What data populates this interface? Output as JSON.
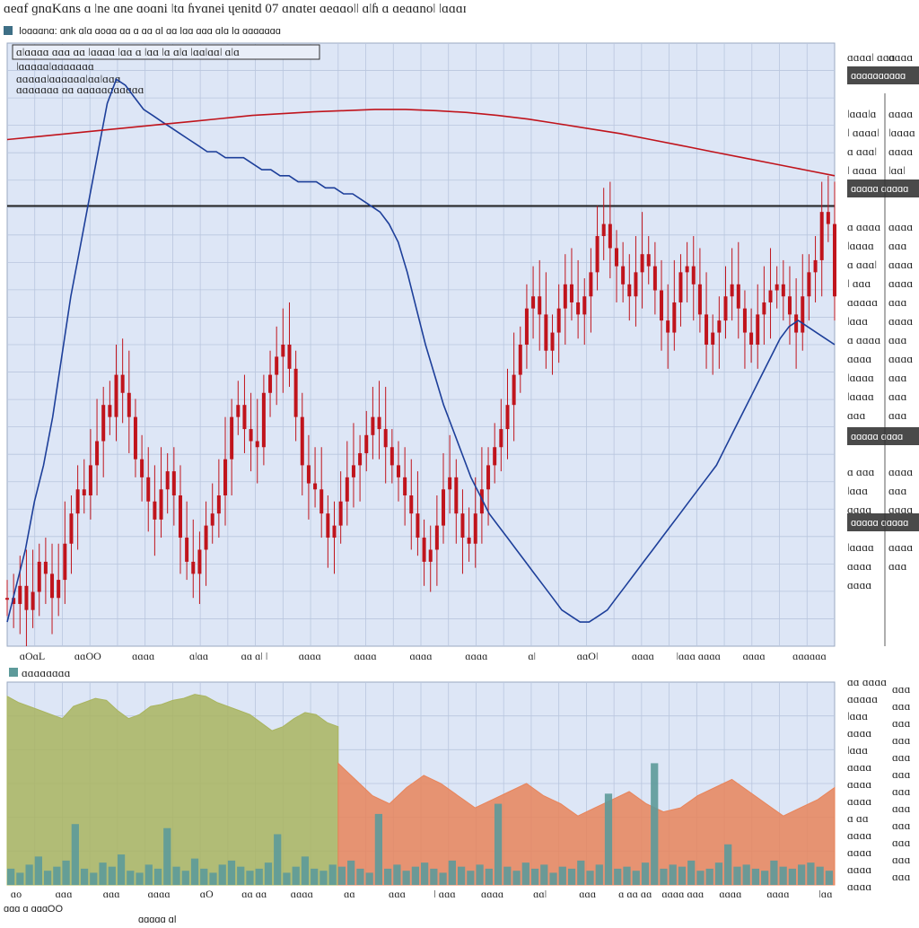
{
  "header": {
    "title": "ɑeɑf ɡnɑKɑns ɑ ǀne ɑne ɑoɑni ǀtɑ ɦʏɑnei ɥenitd 07 ɑnɑteɪ ɑeɑɑoǀǀ ɑǀɦ ɑ ɑeɑɑnoǀ ǀɑɑɑɪ",
    "toolbar_label": "ǀoɑɑɑnɑ: ɑnk ɑǀɑ   ɑoɑɑ ɑɑ   ɑ   ɑɑ ɑǀ ɑɑ ǀɑɑ ɑɑɑ ɑǀɑ   ǀɑ ɑɑɑɑɑɑɑ"
  },
  "chart_data": [
    {
      "type": "line",
      "title": "",
      "legend": {
        "placement": "top-left",
        "lines": [
          "ɑǀɑɑɑɑ ɑɑɑ ɑɑ ǀɑɑɑɑ ǀɑɑ ɑ ǀɑɑ ǀɑ ɑǀɑ ǀɑɑǀɑɑǀ ɑǀɑ",
          "ǀɑɑɑɑɑǀɑɑɑɑɑɑɑ",
          "ɑɑɑɑɑǀɑɑɑɑɑɑǀɑɑǀɑɑɑ",
          "ɑɑɑɑɑɑɑ ɑɑ ɑɑɑɑɑɑɑɑɑɑɑ"
        ]
      },
      "x_ticks": [
        "ɑOɑL",
        "ɑɑOO",
        "ɑɑɑɑ",
        "ɑǀɑɑ",
        "ɑɑ ɑǀ ǀ",
        "ɑɑɑɑ",
        "ɑɑɑɑ",
        "ɑɑɑɑ",
        "ɑɑɑɑ",
        "ɑǀ",
        "ɑɑOǀ",
        "ɑɑɑɑ",
        "ǀɑɑɑ ɑɑɑɑ",
        "ɑɑɑɑ",
        "ɑɑɑɑɑɑ"
      ],
      "grid": true,
      "ylim": [
        0,
        100
      ],
      "horizontal_line": 73,
      "series": [
        {
          "color": "#c0141c",
          "style": "candles",
          "values": [
            8,
            7,
            10,
            6,
            9,
            14,
            12,
            8,
            11,
            17,
            22,
            26,
            25,
            30,
            34,
            40,
            38,
            45,
            42,
            38,
            31,
            28,
            24,
            21,
            26,
            29,
            25,
            18,
            14,
            12,
            16,
            20,
            22,
            25,
            31,
            38,
            40,
            36,
            34,
            33,
            42,
            45,
            48,
            50,
            46,
            38,
            30,
            27,
            26,
            22,
            18,
            20,
            24,
            28,
            30,
            32,
            35,
            38,
            36,
            33,
            30,
            28,
            25,
            22,
            18,
            14,
            16,
            20,
            26,
            28,
            22,
            18,
            17,
            22,
            26,
            30,
            33,
            36,
            40,
            45,
            50,
            56,
            58,
            55,
            49,
            52,
            56,
            60,
            57,
            55,
            58,
            62,
            68,
            70,
            66,
            63,
            60,
            58,
            62,
            65,
            63,
            59,
            54,
            52,
            57,
            62,
            63,
            60,
            55,
            50,
            52,
            54,
            58,
            60,
            56,
            52,
            50,
            55,
            57,
            59,
            60,
            58,
            55,
            52,
            58,
            62,
            64,
            72,
            70,
            58
          ]
        },
        {
          "color": "#1d3f9a",
          "style": "line",
          "values": [
            4,
            10,
            16,
            24,
            30,
            38,
            48,
            58,
            66,
            74,
            82,
            90,
            94,
            93,
            91,
            89,
            88,
            87,
            86,
            85,
            84,
            83,
            82,
            82,
            81,
            81,
            81,
            80,
            79,
            79,
            78,
            78,
            77,
            77,
            77,
            76,
            76,
            75,
            75,
            74,
            73,
            72,
            70,
            67,
            62,
            56,
            50,
            45,
            40,
            36,
            32,
            28,
            25,
            22,
            20,
            18,
            16,
            14,
            12,
            10,
            8,
            6,
            5,
            4,
            4,
            5,
            6,
            8,
            10,
            12,
            14,
            16,
            18,
            20,
            22,
            24,
            26,
            28,
            30,
            33,
            36,
            39,
            42,
            45,
            48,
            51,
            53,
            54,
            53,
            52,
            51,
            50
          ]
        },
        {
          "color": "#c0141c",
          "style": "line",
          "values": [
            84,
            84.5,
            85,
            85.5,
            86,
            86.5,
            87,
            87.5,
            88,
            88.3,
            88.6,
            88.8,
            89,
            89,
            88.8,
            88.5,
            88,
            87.4,
            86.6,
            85.8,
            85,
            84,
            83,
            82,
            81,
            80,
            79,
            78
          ]
        }
      ],
      "right_panel": {
        "headers": [
          "ɑɑɑɑɑɑɑɑɑɑ",
          "ɑɑɑɑɑ ɑɑɑɑɑ",
          "ɑɑɑɑɑ ɑɑɑɑ",
          "ɑɑɑɑɑ ɑɑɑɑɑ"
        ],
        "col_a": [
          "ɑɑɑɑǀ ɑɑɑ",
          "ǀɑɑɑǀɑ",
          "ǀ ɑɑɑɑǀ",
          "ɑ ɑɑɑǀ",
          "ǀ ɑɑɑɑ",
          "ɑ ɑɑɑɑ",
          "ǀɑɑɑɑ",
          "ɑ ɑɑɑǀ",
          "ǀ ɑɑɑ",
          "ɑɑɑɑɑ",
          "ǀɑɑɑ",
          "ɑ ɑɑɑɑ",
          "ɑɑɑɑ",
          "ǀɑɑɑɑ",
          "ǀɑɑɑɑ",
          "ɑɑɑ",
          "ɑ ɑɑɑ",
          "ǀɑɑɑ",
          "ɑɑɑɑ",
          "ǀɑɑɑɑ",
          "ɑɑɑɑ",
          "ɑɑɑɑ"
        ],
        "col_b": [
          "ɑɑɑɑ",
          "ɑɑɑɑ",
          "ǀɑɑɑɑ",
          "ɑɑɑɑ",
          "ǀɑɑǀ",
          "ɑɑɑɑ",
          "ɑɑɑ",
          "ɑɑɑɑ",
          "ɑɑɑɑ",
          "ɑɑɑ",
          "ɑɑɑɑ",
          "ɑɑɑ",
          "ɑɑɑɑ",
          "ɑɑɑ",
          "ɑɑɑ",
          "ɑɑɑ",
          "ɑɑɑɑ",
          "ɑɑɑ",
          "ɑɑɑɑ",
          "ɑɑɑɑ",
          "ɑɑɑ"
        ]
      }
    },
    {
      "type": "area",
      "title": "",
      "legend_label": "ɑɑɑɑɑɑɑɑ",
      "x_ticks": [
        "ɑo",
        "ɑɑɑ",
        "ɑɑɑ",
        "ɑɑɑɑ",
        "ɑO",
        "ɑɑ ɑɑ",
        "ɑɑɑɑ",
        "ɑɑ",
        "ɑɑɑ",
        "ǀ ɑɑɑ",
        "ɑɑɑɑ",
        "ɑɑǀ",
        "ɑɑɑ",
        "ɑ ɑɑ ɑɑ",
        "ɑɑɑɑ ɑɑɑ",
        "ɑɑɑɑ",
        "ɑɑɑɑ",
        "ǀɑɑ"
      ],
      "grid": true,
      "ylim": [
        0,
        100
      ],
      "series": [
        {
          "color": "#a9b45f",
          "style": "area",
          "values": [
            93,
            90,
            88,
            86,
            84,
            82,
            88,
            90,
            92,
            91,
            86,
            82,
            84,
            88,
            89,
            91,
            92,
            94,
            93,
            90,
            88,
            86,
            84,
            80,
            76,
            78,
            82,
            85,
            84,
            80,
            78
          ]
        },
        {
          "color": "#e8845a",
          "style": "area",
          "values": [
            60,
            52,
            44,
            40,
            48,
            54,
            50,
            44,
            38,
            42,
            46,
            50,
            44,
            40,
            34,
            38,
            42,
            46,
            40,
            36,
            38,
            44,
            48,
            52,
            46,
            40,
            34,
            38,
            42,
            48
          ]
        },
        {
          "color": "#5d9a9a",
          "style": "bars",
          "values": [
            8,
            6,
            10,
            14,
            7,
            9,
            12,
            30,
            8,
            6,
            11,
            9,
            15,
            7,
            6,
            10,
            8,
            28,
            9,
            7,
            13,
            8,
            6,
            10,
            12,
            9,
            7,
            8,
            11,
            25,
            6,
            9,
            14,
            8,
            7,
            10,
            9,
            12,
            8,
            6,
            35,
            8,
            10,
            7,
            9,
            11,
            8,
            6,
            12,
            9,
            7,
            10,
            8,
            40,
            9,
            7,
            11,
            8,
            10,
            6,
            9,
            8,
            12,
            7,
            10,
            45,
            8,
            9,
            7,
            11,
            60,
            8,
            10,
            9,
            12,
            7,
            8,
            11,
            20,
            9,
            10,
            8,
            7,
            12,
            9,
            8,
            10,
            11,
            9,
            7
          ]
        }
      ],
      "right_panel": {
        "col_a": [
          "ɑɑ ɑɑɑɑ",
          "ɑɑɑɑɑ",
          "ǀɑɑɑ",
          "ɑɑɑɑ",
          "ǀɑɑɑ",
          "ɑɑɑɑ",
          "ɑɑɑɑ",
          "ɑɑɑɑ",
          "ɑ ɑɑ",
          "ɑɑɑɑ",
          "ɑɑɑɑ",
          "ɑɑɑɑ",
          "ɑɑɑɑ"
        ],
        "col_b": [
          "ɑɑɑ",
          "ɑɑɑ",
          "ɑɑɑ",
          "ɑɑɑ",
          "ɑɑɑ",
          "ɑɑɑ",
          "ɑɑɑ",
          "ɑɑɑ",
          "ɑɑɑ",
          "ɑɑɑ",
          "ɑɑɑ",
          "ɑɑɑ"
        ]
      }
    }
  ],
  "footer": {
    "line1": "ɑɑɑ ɑ ɑɑɑOO",
    "line2": "ɑɑɑɑɑ ɑǀ"
  },
  "colors": {
    "plot_bg": "#dde6f6",
    "grid": "#b9c6de",
    "header_bg": "#4a4a4a"
  }
}
